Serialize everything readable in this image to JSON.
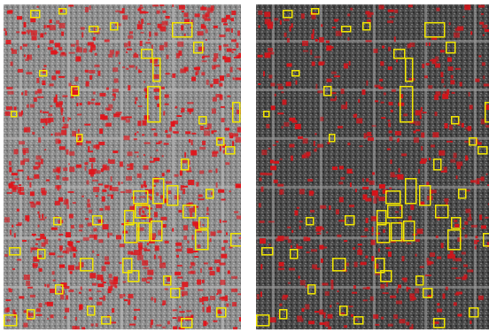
{
  "figure": {
    "panels": [
      {
        "id": "left",
        "content": "aerial-image-with-detection-overlays",
        "base_tone": "light-gray",
        "detection_color": "#e0151b",
        "box_color": "#f2e600"
      },
      {
        "id": "right",
        "content": "aerial-image-with-detection-overlays",
        "base_tone": "dark-gray",
        "detection_color": "#d5141a",
        "box_color": "#f2e600"
      }
    ]
  }
}
